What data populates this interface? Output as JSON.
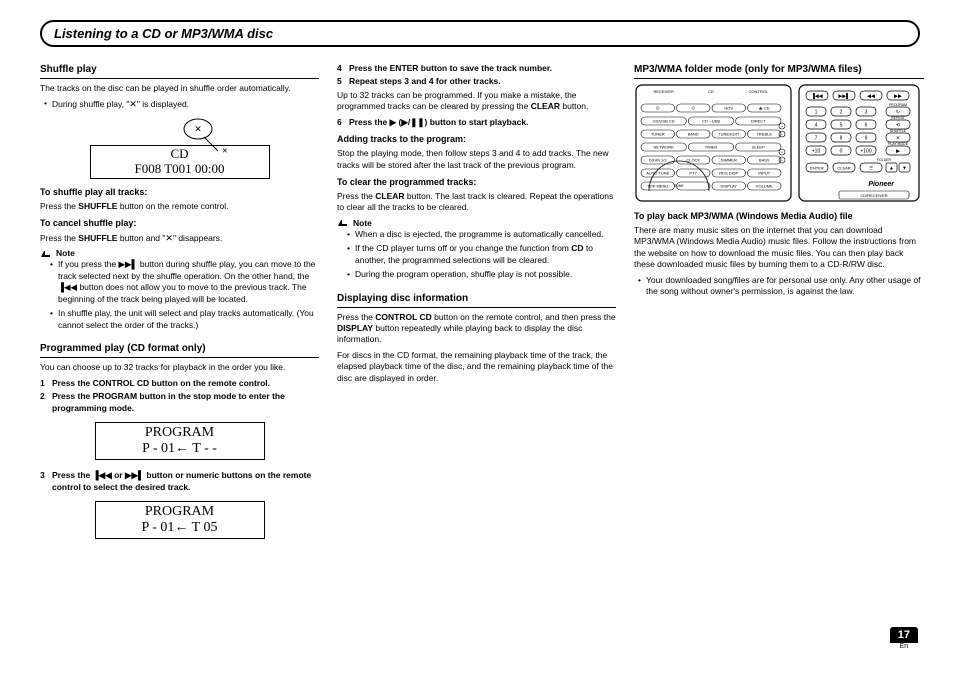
{
  "page_title": "Listening to a CD or MP3/WMA disc",
  "page_number": "17",
  "page_lang": "En",
  "col1": {
    "shuffle": {
      "heading": "Shuffle play",
      "intro": "The tracks on the disc can be played in shuffle order automatically.",
      "bullet1_a": "During shuffle play, \"",
      "bullet1_b": "\" is displayed.",
      "display_line1": "CD",
      "display_line2": "F008    T001      00:00",
      "h_all": "To shuffle play all tracks:",
      "p_all": "Press the SHUFFLE button on the remote control.",
      "h_cancel": "To cancel shuffle play:",
      "p_cancel_a": "Press the SHUFFLE button and \"",
      "p_cancel_b": "\" disappears.",
      "note_label": "Note",
      "note1": "If you press the ▶▶▌ button during shuffle play, you can move to the track selected next by the shuffle operation. On the other hand, the ▐◀◀ button does not allow you to move to the previous track. The beginning of the track being played will be located.",
      "note2": "In shuffle play, the unit will select and play tracks automatically. (You cannot select the order of the tracks.)"
    },
    "program": {
      "heading": "Programmed play (CD format only)",
      "intro": "You can choose up to 32 tracks for playback in the order you like.",
      "step1": "Press the CONTROL CD button on the remote control.",
      "step2": "Press the PROGRAM button in the stop mode to enter the programming mode.",
      "disp1_l1": "PROGRAM",
      "disp1_l2": "P - 01← T -  -",
      "step3": "Press the  ▐◀◀ or ▶▶▌ button or numeric buttons on the remote control to select the desired track.",
      "disp2_l1": "PROGRAM",
      "disp2_l2": "P - 01← T 05"
    }
  },
  "col2": {
    "step4": "Press the ENTER button to save the track number.",
    "step5": "Repeat steps 3 and 4 for other tracks.",
    "p_after5": "Up to 32 tracks can be programmed. If you make a mistake, the programmed tracks can be cleared by pressing the CLEAR button.",
    "step6_a": "Press the ▶ (▶/",
    "step6_b": ") button to start playback.",
    "h_adding": "Adding tracks to the program:",
    "p_adding": "Stop the playing mode, then follow steps 3 and 4 to add tracks. The new tracks will be stored after the last track of the previous program.",
    "h_clear": "To clear the programmed tracks:",
    "p_clear": "Press the CLEAR button. The last track is cleared. Repeat the operations to clear all the tracks to be cleared.",
    "note_label": "Note",
    "note1": "When a disc is ejected, the programme is automatically cancelled.",
    "note2": "If the CD player turns off or you change the function from CD to another, the programmed selections will be cleared.",
    "note3": "During the program operation, shuffle play is not possible.",
    "h_disp": "Displaying disc information",
    "p_disp1": "Press the CONTROL CD button on the remote control, and then press the DISPLAY button repeatedly while playing back to display the disc information.",
    "p_disp2": "For discs in the CD format, the remaining playback time of the track, the elapsed playback time of the disc, and the remaining playback time of the disc are displayed in order."
  },
  "col3": {
    "heading": "MP3/WMA folder mode (only for MP3/WMA files)",
    "h_play": "To play back MP3/WMA (Windows Media Audio) file",
    "p_play": "There are many music sites on the internet that you can download MP3/WMA (Windows Media Audio) music files. Follow the instructions from the website on how to download the music files. You can then play back these downloaded music files by burning them to a CD-R/RW disc.",
    "bullet1": "Your downloaded song/files are for personal use only. Any other usage of the song without owner's permission, is against the law.",
    "remote": {
      "left_rows": [
        [
          "RECEIVER",
          "CD",
          "CONTROL"
        ],
        [
          "⏻",
          "⏻",
          "NOV",
          "⏏ CD"
        ],
        [
          "CD/USB CD",
          "CD→USB",
          "DIRECT"
        ],
        [
          "TUNER",
          "BAND",
          "TUNE/EDIT",
          "TREBLE"
        ],
        [
          "NETWORK",
          "TIMER",
          "SLEEP"
        ],
        [
          "DIGIN 1/2",
          "CLOCK",
          "DIMMER",
          "BASS"
        ],
        [
          "AUTO TUNE",
          "PTY",
          "RDS DISP",
          "INPUT"
        ],
        [
          "TOP MENU",
          "",
          "DISPLAY",
          "VOLUME"
        ]
      ],
      "right": {
        "top_row": [
          "▐◀◀",
          "▶▶▌",
          "◀◀",
          "▶▶"
        ],
        "numbers": [
          [
            "1",
            "2",
            "3"
          ],
          [
            "4",
            "5",
            "6"
          ],
          [
            "7",
            "8",
            "9"
          ],
          [
            "+10",
            "0",
            "+100"
          ]
        ],
        "side_labels": [
          "PROGRAM",
          "REPEAT",
          "SHUFFLE",
          "PLAY MODE"
        ],
        "bottom_row": [
          "ENTER",
          "CLEAR",
          "☰"
        ],
        "folder": "FOLDER",
        "brand": "Pioneer",
        "sub": "CD/RECEIVER"
      }
    }
  }
}
